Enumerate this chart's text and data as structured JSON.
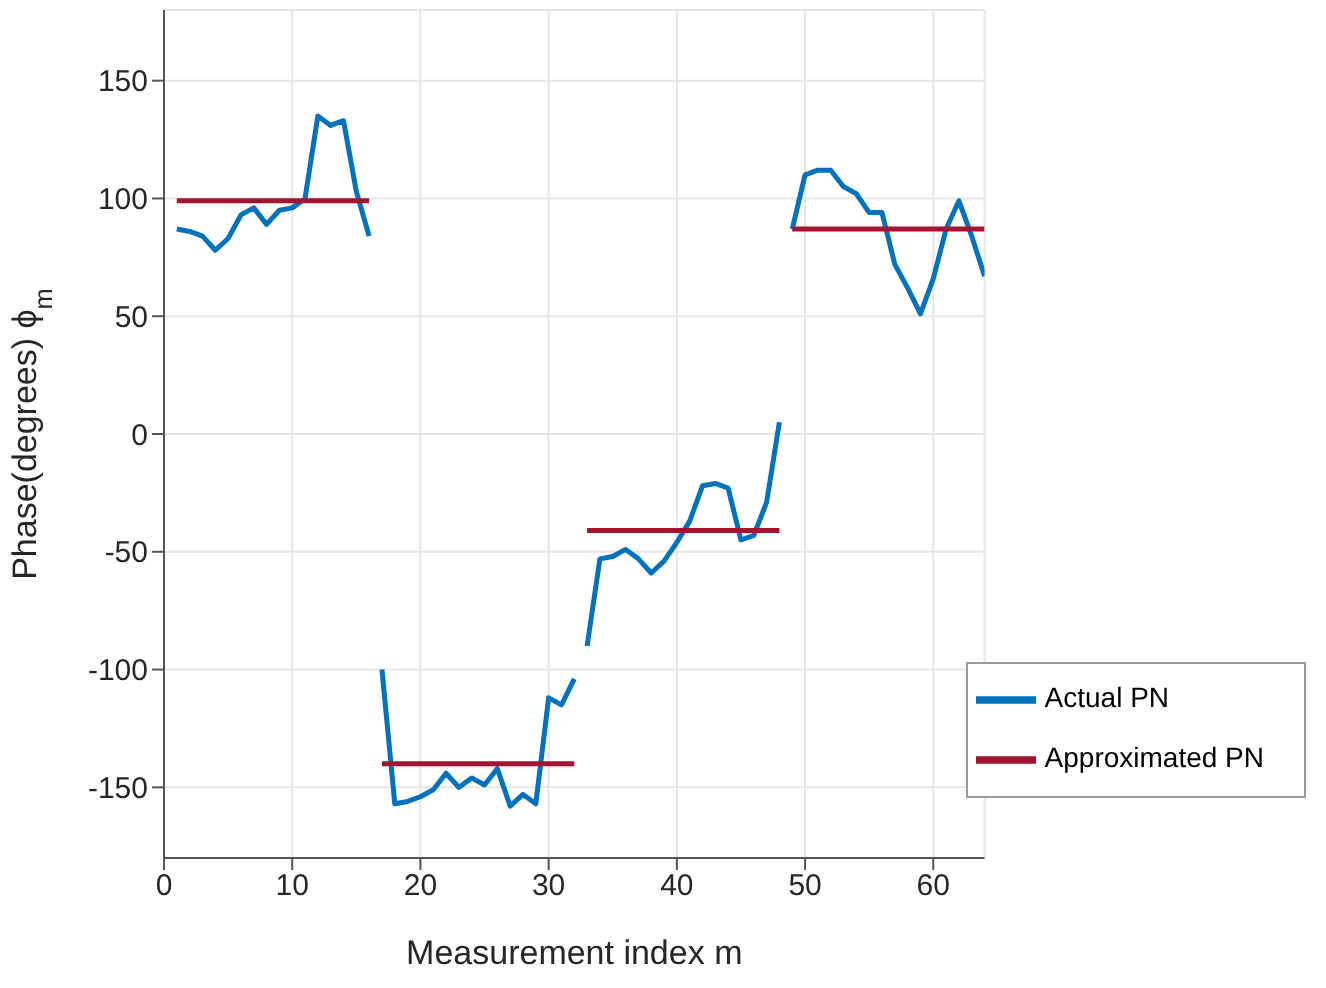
{
  "chart_data": {
    "type": "line",
    "xlabel": "Measurement index m",
    "ylabel": "Phase(degrees) ϕ$_{m}$",
    "xlim": [
      0,
      64
    ],
    "xticks": [
      0,
      10,
      20,
      30,
      40,
      50,
      60
    ],
    "ylim": [
      -180,
      180
    ],
    "yticks": [
      -150,
      -100,
      -50,
      0,
      50,
      100,
      150
    ],
    "grid": true,
    "legend": "bottom right",
    "line_style": "solid",
    "marker": "none",
    "series": [
      {
        "name": "Actual PN",
        "color": "#0072bd",
        "x": [
          1,
          2,
          3,
          4,
          5,
          6,
          7,
          8,
          9,
          10,
          11,
          12,
          13,
          14,
          15,
          16,
          16.5,
          17,
          18,
          19,
          20,
          21,
          22,
          23,
          24,
          25,
          26,
          27,
          28,
          29,
          30,
          31,
          32,
          32.5,
          33,
          34,
          35,
          36,
          37,
          38,
          39,
          40,
          41,
          42,
          43,
          44,
          45,
          46,
          47,
          48,
          48.5,
          49,
          50,
          51,
          52,
          53,
          54,
          55,
          56,
          57,
          58,
          59,
          60,
          61,
          62,
          63,
          64
        ],
        "values": [
          87,
          86,
          84,
          78,
          83,
          93,
          96,
          89,
          95,
          96,
          100,
          135,
          131,
          133,
          103,
          84,
          null,
          -100,
          -157,
          -156,
          -154,
          -151,
          -144,
          -150,
          -146,
          -149,
          -142,
          -158,
          -153,
          -157,
          -112,
          -115,
          -104,
          null,
          -90,
          -53,
          -52,
          -49,
          -53,
          -59,
          -54,
          -46,
          -37,
          -22,
          -21,
          -23,
          -45,
          -43,
          -29,
          5,
          null,
          87,
          110,
          112,
          112,
          105,
          102,
          94,
          94,
          72,
          62,
          51,
          66,
          87,
          99,
          84,
          67
        ]
      },
      {
        "name": "Approximated PN",
        "color": "#a2142f",
        "x": [
          1,
          16,
          16.5,
          17,
          32,
          32.5,
          33,
          48,
          48.5,
          49,
          64
        ],
        "values": [
          99,
          99,
          null,
          -140,
          -140,
          null,
          -41,
          -41,
          null,
          87,
          87
        ]
      }
    ]
  }
}
